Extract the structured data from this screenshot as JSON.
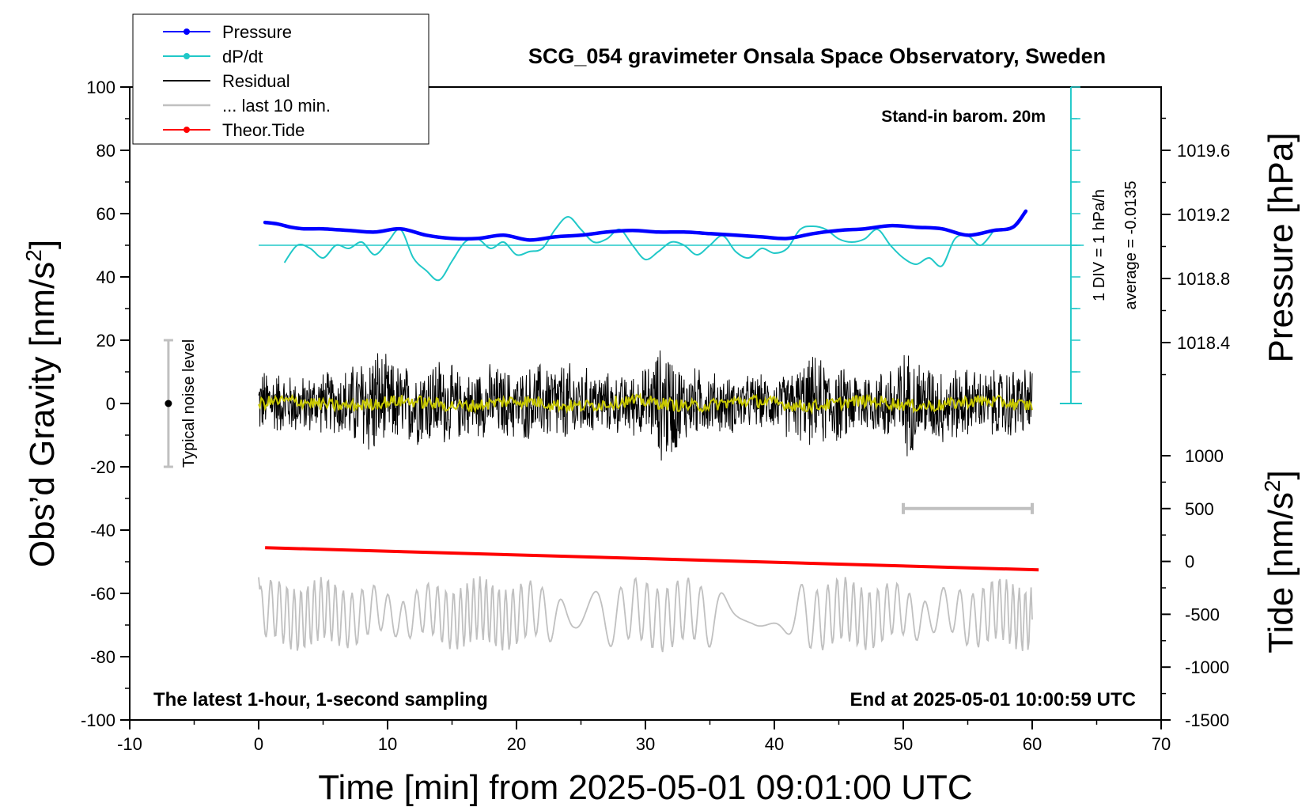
{
  "chart_data": {
    "type": "line",
    "title": "SCG_054 gravimeter Onsala Space Observatory, Sweden",
    "xlabel": "Time [min] from 2025-05-01 09:01:00 UTC",
    "ylabel_main": "Obs’d Gravity [nm/s",
    "ylabel_pressure": "Pressure [hPa]",
    "ylabel_tide": "Tide [nm/s",
    "unit_exponent": "2",
    "xlim": [
      -10,
      70
    ],
    "ylim_gravity": [
      -100,
      100
    ],
    "ylim_pressure": [
      1018.0,
      1020.0
    ],
    "ylim_tide": [
      -1500,
      1500
    ],
    "x_ticks": [
      "-10",
      "0",
      "10",
      "20",
      "30",
      "40",
      "50",
      "60",
      "70"
    ],
    "gravity_ticks": [
      "100",
      "80",
      "60",
      "40",
      "20",
      "0",
      "-20",
      "-40",
      "-60",
      "-80",
      "-100"
    ],
    "pressure_ticks": [
      "1019.6",
      "1019.2",
      "1018.8",
      "1018.4"
    ],
    "tide_ticks": [
      "1000",
      "500",
      "0",
      "-500",
      "-1000",
      "-1500"
    ],
    "legend": {
      "placement": "top-left",
      "entries": [
        {
          "label": "Pressure",
          "color": "#0000ff",
          "marker": true
        },
        {
          "label": "dP/dt",
          "color": "#20c8c8",
          "marker": true
        },
        {
          "label": "Residual",
          "color": "#000000",
          "marker": false
        },
        {
          "label": "... last 10 min.",
          "color": "#c0c0c0",
          "marker": false
        },
        {
          "label": "Theor.Tide",
          "color": "#ff0000",
          "marker": true
        }
      ]
    },
    "annotations": {
      "barometer": "Stand-in barom. 20m",
      "div_label": "1 DIV = 1 hPa/h",
      "average_label": "average = -0.0135",
      "noise_label": "Typical noise level",
      "bottom_left": "The latest 1-hour, 1-second sampling",
      "bottom_right": "End at 2025-05-01 10:00:59 UTC"
    },
    "noise_bar": {
      "x": -7,
      "center": 0,
      "half_range": 20
    },
    "last10_bar": {
      "x_start": 50,
      "x_end": 60,
      "y_tide": 500
    },
    "pressure_series": {
      "name": "Pressure",
      "color": "#0000ff",
      "x": [
        0.5,
        1.5,
        2.5,
        3.5,
        5,
        7,
        9,
        11,
        13,
        15,
        17,
        19,
        21,
        23,
        25,
        27,
        29,
        31,
        33,
        35,
        37,
        39,
        41,
        43,
        45,
        47,
        49,
        51,
        53,
        55,
        57,
        58.5,
        59.5
      ],
      "values": [
        1019.15,
        1019.14,
        1019.12,
        1019.11,
        1019.11,
        1019.1,
        1019.09,
        1019.11,
        1019.07,
        1019.05,
        1019.05,
        1019.07,
        1019.04,
        1019.06,
        1019.07,
        1019.09,
        1019.1,
        1019.09,
        1019.09,
        1019.08,
        1019.07,
        1019.06,
        1019.05,
        1019.08,
        1019.1,
        1019.11,
        1019.13,
        1019.12,
        1019.11,
        1019.07,
        1019.1,
        1019.12,
        1019.22
      ]
    },
    "dpdt_series": {
      "name": "dP/dt",
      "color": "#20c8c8",
      "baseline_gravity": 50,
      "x": [
        2,
        3,
        4,
        5,
        6,
        7,
        8,
        9,
        10,
        11,
        12,
        13,
        14,
        15,
        16,
        17,
        18,
        19,
        20,
        21,
        22,
        23,
        24,
        25,
        26,
        27,
        28,
        29,
        30,
        31,
        32,
        33,
        34,
        35,
        36,
        37,
        38,
        39,
        40,
        41,
        42,
        43,
        44,
        45,
        46,
        47,
        48,
        49,
        50,
        51,
        52,
        53,
        54,
        55,
        56,
        57
      ],
      "values": [
        44.5,
        50,
        49,
        46,
        50,
        49,
        51,
        47,
        51,
        55,
        46,
        42,
        39,
        45,
        51,
        52,
        49,
        51,
        47,
        48,
        49,
        55,
        59,
        55,
        51,
        52,
        55,
        50,
        45.5,
        48,
        51,
        50,
        47,
        50,
        53,
        48,
        46,
        49,
        47.5,
        49,
        55,
        56,
        55,
        52,
        51,
        52,
        55,
        50,
        46,
        44,
        46,
        43.5,
        52,
        53,
        50,
        54.5
      ]
    },
    "residual_series": {
      "name": "Residual",
      "color": "#000000",
      "x_start": 0,
      "x_end": 60,
      "envelope_x": [
        0,
        3,
        6,
        8,
        9,
        10,
        12,
        14,
        16,
        18,
        20,
        22,
        24,
        26,
        28,
        30,
        31.5,
        33,
        36,
        40,
        43,
        46,
        48,
        50,
        52,
        54,
        56,
        58,
        60
      ],
      "envelope": [
        12,
        10,
        11,
        17,
        21,
        15,
        14,
        16,
        11,
        13,
        12,
        14,
        15,
        11,
        10,
        12,
        22,
        13,
        10,
        9,
        16,
        12,
        11,
        19,
        14,
        13,
        11,
        13,
        12
      ]
    },
    "smoothed_series": {
      "color": "#c8c800",
      "amplitude": 2
    },
    "last10_series": {
      "name": "... last 10 min.",
      "color": "#c0c0c0",
      "x_start": 0,
      "x_end": 60,
      "center_tide": -500,
      "amplitude": 300,
      "start_value": -150,
      "end_value": -550
    },
    "tide_series": {
      "name": "Theor.Tide",
      "color": "#ff0000",
      "x": [
        0.5,
        60.5
      ],
      "values": [
        130,
        -80
      ]
    }
  }
}
